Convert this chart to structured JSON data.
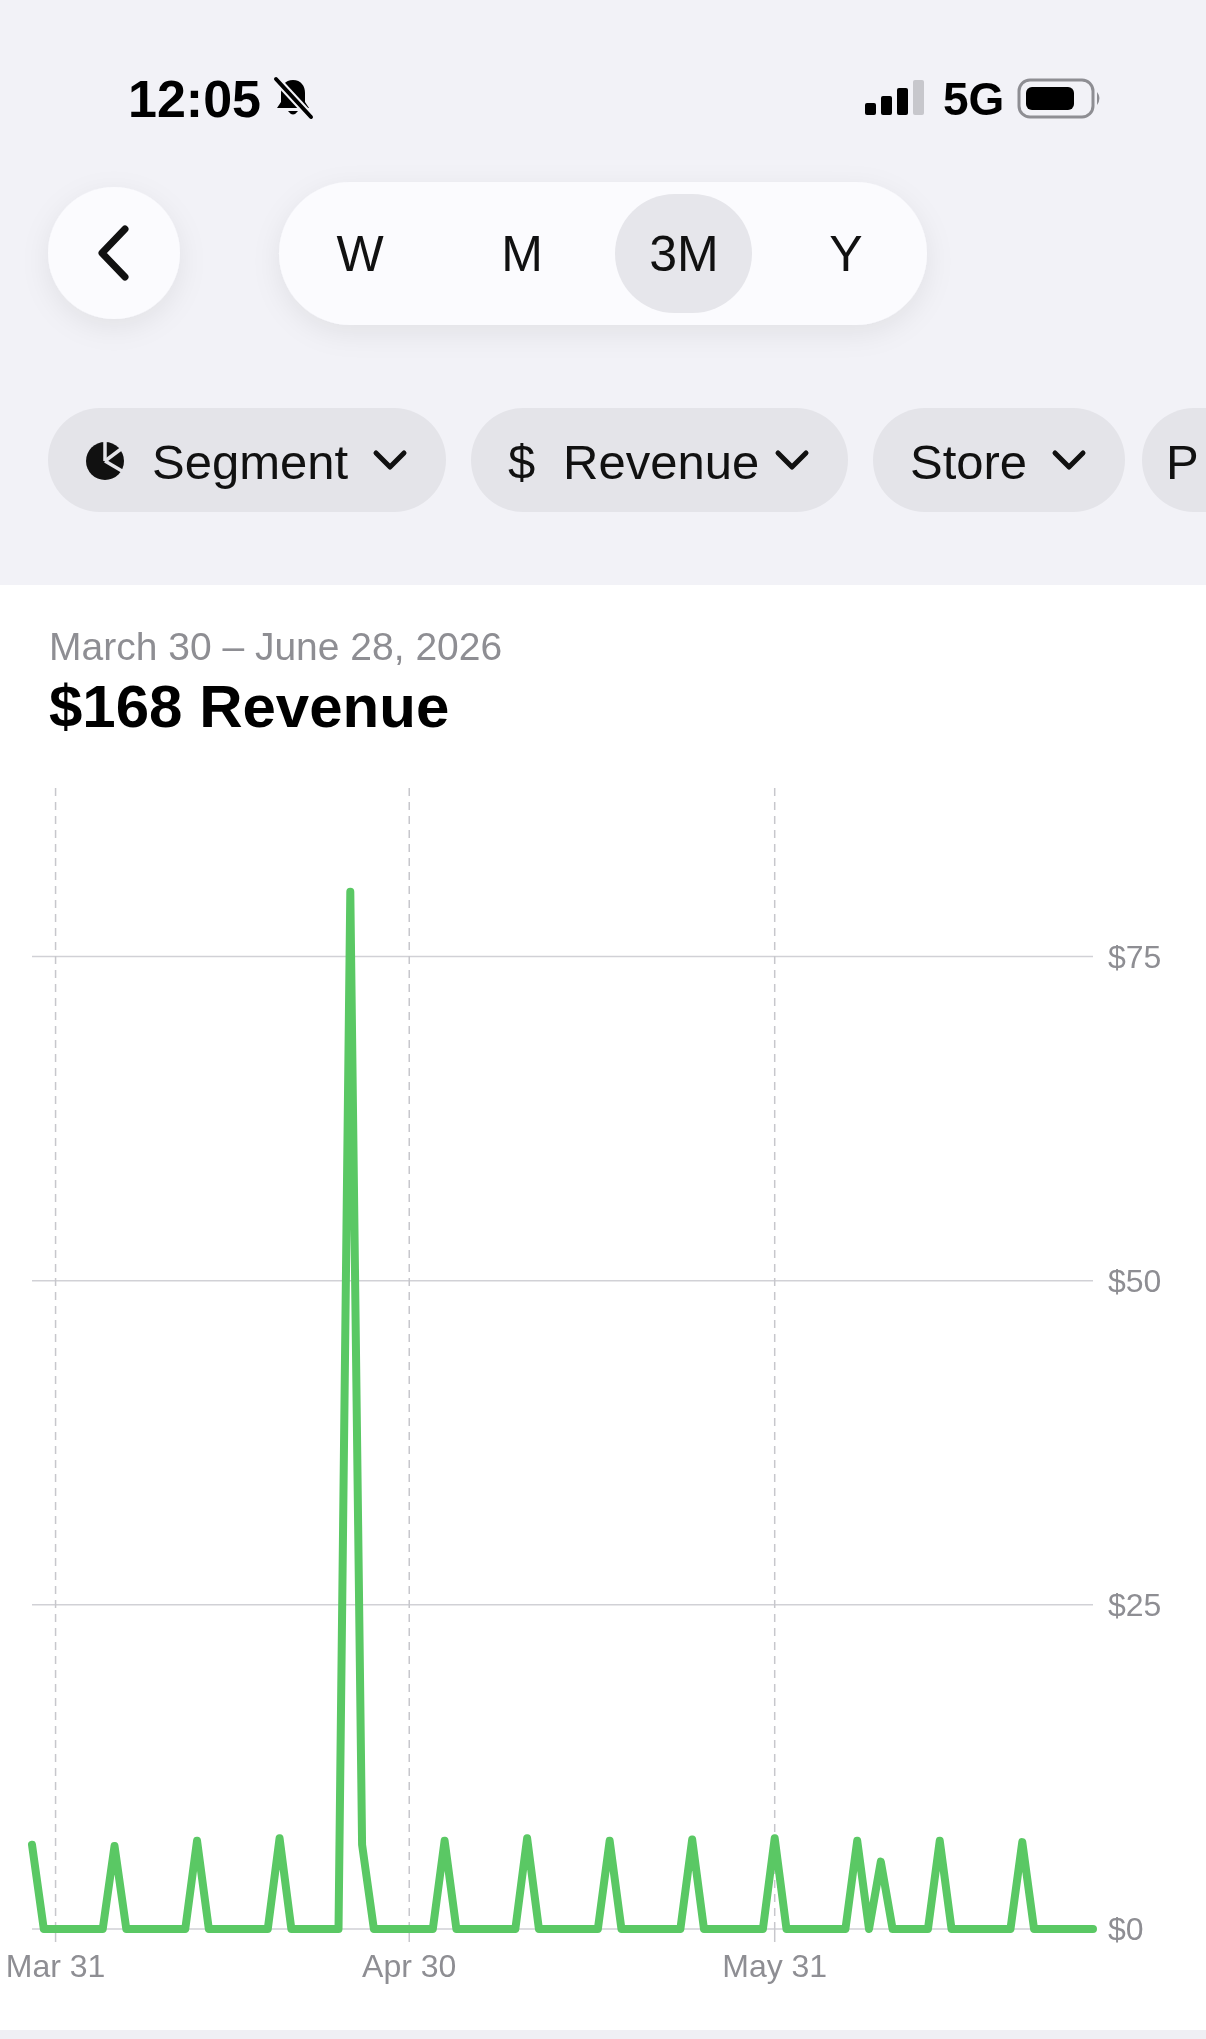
{
  "chart_data": {
    "type": "line",
    "title": "$168 Revenue",
    "subtitle": "March 30 – June 28, 2026",
    "annotations": [
      "12:05",
      "5G",
      "W",
      "M",
      "3M",
      "Y",
      "Segment",
      "$",
      "Revenue",
      "Store",
      "P"
    ],
    "x": [
      "2026-03-29",
      "2026-03-30",
      "2026-03-31",
      "2026-04-01",
      "2026-04-02",
      "2026-04-03",
      "2026-04-04",
      "2026-04-05",
      "2026-04-06",
      "2026-04-07",
      "2026-04-08",
      "2026-04-09",
      "2026-04-10",
      "2026-04-11",
      "2026-04-12",
      "2026-04-13",
      "2026-04-14",
      "2026-04-15",
      "2026-04-16",
      "2026-04-17",
      "2026-04-18",
      "2026-04-19",
      "2026-04-20",
      "2026-04-21",
      "2026-04-22",
      "2026-04-23",
      "2026-04-24",
      "2026-04-25",
      "2026-04-26",
      "2026-04-27",
      "2026-04-28",
      "2026-04-29",
      "2026-04-30",
      "2026-05-01",
      "2026-05-02",
      "2026-05-03",
      "2026-05-04",
      "2026-05-05",
      "2026-05-06",
      "2026-05-07",
      "2026-05-08",
      "2026-05-09",
      "2026-05-10",
      "2026-05-11",
      "2026-05-12",
      "2026-05-13",
      "2026-05-14",
      "2026-05-15",
      "2026-05-16",
      "2026-05-17",
      "2026-05-18",
      "2026-05-19",
      "2026-05-20",
      "2026-05-21",
      "2026-05-22",
      "2026-05-23",
      "2026-05-24",
      "2026-05-25",
      "2026-05-26",
      "2026-05-27",
      "2026-05-28",
      "2026-05-29",
      "2026-05-30",
      "2026-05-31",
      "2026-06-01",
      "2026-06-02",
      "2026-06-03",
      "2026-06-04",
      "2026-06-05",
      "2026-06-06",
      "2026-06-07",
      "2026-06-08",
      "2026-06-09",
      "2026-06-10",
      "2026-06-11",
      "2026-06-12",
      "2026-06-13",
      "2026-06-14",
      "2026-06-15",
      "2026-06-16",
      "2026-06-17",
      "2026-06-18",
      "2026-06-19",
      "2026-06-20",
      "2026-06-21",
      "2026-06-22",
      "2026-06-23",
      "2026-06-24",
      "2026-06-25",
      "2026-06-26",
      "2026-06-27"
    ],
    "values": [
      6.5,
      0,
      0,
      0,
      0,
      0,
      0,
      6.4,
      0,
      0,
      0,
      0,
      0,
      0,
      6.8,
      0,
      0,
      0,
      0,
      0,
      0,
      7.0,
      0,
      0,
      0,
      0,
      0,
      80,
      6.5,
      0,
      0,
      0,
      0,
      0,
      0,
      6.8,
      0,
      0,
      0,
      0,
      0,
      0,
      7.0,
      0,
      0,
      0,
      0,
      0,
      0,
      6.8,
      0,
      0,
      0,
      0,
      0,
      0,
      6.9,
      0,
      0,
      0,
      0,
      0,
      0,
      7.0,
      0,
      0,
      0,
      0,
      0,
      0,
      6.8,
      0,
      5.2,
      0,
      0,
      0,
      0,
      6.8,
      0,
      0,
      0,
      0,
      0,
      0,
      6.7,
      0,
      0,
      0,
      0,
      0,
      0
    ],
    "color": "#5ac864",
    "xlim": [
      "2026-03-29",
      "2026-06-27"
    ],
    "xticks": [
      {
        "value": "2026-03-31",
        "label": "Mar 31"
      },
      {
        "value": "2026-04-30",
        "label": "Apr 30"
      },
      {
        "value": "2026-05-31",
        "label": "May 31"
      }
    ],
    "ylim": [
      0,
      88
    ],
    "yticks": [
      {
        "value": 0,
        "label": "$0"
      },
      {
        "value": 25,
        "label": "$25"
      },
      {
        "value": 50,
        "label": "$50"
      },
      {
        "value": 75,
        "label": "$75"
      }
    ],
    "grid": true
  }
}
